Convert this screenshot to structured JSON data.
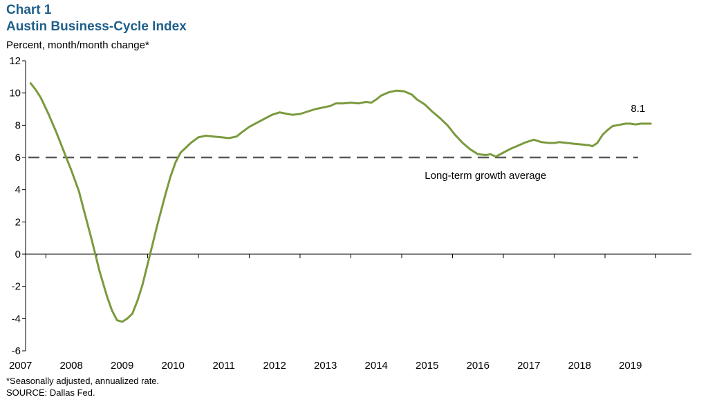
{
  "header": {
    "chart_number": "Chart 1",
    "title": "Austin Business-Cycle Index",
    "ylabel": "Percent, month/month  change*"
  },
  "footer": {
    "note": "*Seasonally adjusted, annualized rate.",
    "source": "SOURCE:  Dallas Fed."
  },
  "colors": {
    "series": "#7a9a3d",
    "reference": "#595959",
    "title": "#1f5f8b"
  },
  "chart_data": {
    "type": "line",
    "title": "Austin Business-Cycle Index",
    "ylabel": "Percent, month/month  change*",
    "xlabel": "",
    "ylim": [
      -6,
      12
    ],
    "yticks": [
      "12",
      "10",
      "8",
      "6",
      "4",
      "2",
      "0",
      "-2",
      "-4",
      "-6"
    ],
    "xlim": [
      2006.9,
      2020.0
    ],
    "categories": [
      "2007",
      "2008",
      "2009",
      "2010",
      "2011",
      "2012",
      "2013",
      "2014",
      "2015",
      "2016",
      "2017",
      "2018",
      "2019"
    ],
    "grid": false,
    "series": [
      {
        "name": "Austin Business-Cycle Index",
        "x": [
          2007.0,
          2007.1,
          2007.2,
          2007.35,
          2007.5,
          2007.65,
          2007.8,
          2007.95,
          2008.05,
          2008.2,
          2008.35,
          2008.5,
          2008.6,
          2008.7,
          2008.8,
          2008.9,
          2009.0,
          2009.1,
          2009.2,
          2009.35,
          2009.5,
          2009.65,
          2009.75,
          2009.85,
          2009.95,
          2010.05,
          2010.15,
          2010.3,
          2010.45,
          2010.6,
          2010.75,
          2010.9,
          2011.05,
          2011.15,
          2011.3,
          2011.45,
          2011.6,
          2011.75,
          2011.9,
          2012.05,
          2012.15,
          2012.3,
          2012.45,
          2012.6,
          2012.75,
          2012.9,
          2013.0,
          2013.15,
          2013.3,
          2013.45,
          2013.6,
          2013.7,
          2013.8,
          2013.9,
          2014.05,
          2014.2,
          2014.35,
          2014.5,
          2014.6,
          2014.75,
          2014.9,
          2015.05,
          2015.2,
          2015.35,
          2015.5,
          2015.65,
          2015.8,
          2015.95,
          2016.05,
          2016.15,
          2016.3,
          2016.45,
          2016.6,
          2016.75,
          2016.9,
          2017.05,
          2017.2,
          2017.3,
          2017.4,
          2017.55,
          2017.7,
          2017.85,
          2018.0,
          2018.05,
          2018.15,
          2018.25,
          2018.35,
          2018.45,
          2018.55,
          2018.7,
          2018.8,
          2018.9,
          2019.0,
          2019.1,
          2019.2
        ],
        "values": [
          10.6,
          10.2,
          9.7,
          8.7,
          7.6,
          6.4,
          5.2,
          3.9,
          2.7,
          0.9,
          -1.0,
          -2.6,
          -3.5,
          -4.1,
          -4.2,
          -4.0,
          -3.7,
          -2.9,
          -1.9,
          0.0,
          1.9,
          3.7,
          4.8,
          5.7,
          6.3,
          6.6,
          6.9,
          7.25,
          7.35,
          7.3,
          7.25,
          7.2,
          7.3,
          7.55,
          7.9,
          8.15,
          8.4,
          8.65,
          8.8,
          8.7,
          8.65,
          8.7,
          8.85,
          9.0,
          9.1,
          9.2,
          9.35,
          9.35,
          9.4,
          9.35,
          9.45,
          9.4,
          9.6,
          9.85,
          10.05,
          10.15,
          10.1,
          9.9,
          9.6,
          9.3,
          8.85,
          8.45,
          8.0,
          7.4,
          6.9,
          6.5,
          6.2,
          6.15,
          6.2,
          6.05,
          6.3,
          6.55,
          6.75,
          6.95,
          7.1,
          6.95,
          6.9,
          6.9,
          6.95,
          6.9,
          6.85,
          6.8,
          6.75,
          6.7,
          6.9,
          7.4,
          7.7,
          7.95,
          8.0,
          8.1,
          8.1,
          8.05,
          8.1,
          8.1,
          8.1
        ]
      }
    ],
    "reference_line": {
      "value": 6,
      "label": "Long-term growth average",
      "style": "dashed"
    },
    "annotations": [
      {
        "text": "8.1",
        "x": 2018.95,
        "y": 8.1
      }
    ]
  }
}
